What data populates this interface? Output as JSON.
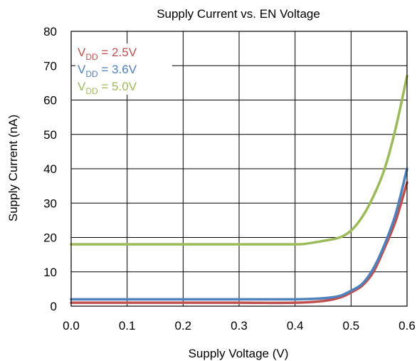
{
  "chart_data": {
    "type": "line",
    "title": "Supply Current vs. EN Voltage",
    "xlabel": "Supply Voltage (V)",
    "ylabel": "Supply Current (nA)",
    "xlim": [
      0.0,
      0.6
    ],
    "ylim": [
      0,
      80
    ],
    "xticks": [
      "0.0",
      "0.1",
      "0.2",
      "0.3",
      "0.4",
      "0.5",
      "0.6"
    ],
    "yticks": [
      "0",
      "10",
      "20",
      "30",
      "40",
      "50",
      "60",
      "70",
      "80"
    ],
    "grid": true,
    "legend": "top-left",
    "series": [
      {
        "name": "VDD = 2.5V",
        "label_main": "V",
        "label_sub": "DD",
        "label_rest": " = 2.5V",
        "color": "#c0504d",
        "x": [
          0.0,
          0.1,
          0.2,
          0.3,
          0.4,
          0.45,
          0.48,
          0.5,
          0.52,
          0.54,
          0.56,
          0.58,
          0.6
        ],
        "y": [
          1,
          1,
          1,
          1,
          1,
          1.5,
          2.5,
          4,
          6,
          10,
          17,
          25,
          36
        ]
      },
      {
        "name": "VDD = 3.6V",
        "label_main": "V",
        "label_sub": "DD",
        "label_rest": " = 3.6V",
        "color": "#4f81bd",
        "x": [
          0.0,
          0.1,
          0.2,
          0.3,
          0.4,
          0.45,
          0.48,
          0.5,
          0.52,
          0.54,
          0.56,
          0.58,
          0.6
        ],
        "y": [
          2,
          2,
          2,
          2,
          2,
          2.3,
          3,
          4.5,
          6.5,
          11,
          18,
          27,
          40
        ]
      },
      {
        "name": "VDD = 5.0V",
        "label_main": "V",
        "label_sub": "DD",
        "label_rest": " = 5.0V",
        "color": "#9bbb59",
        "x": [
          0.0,
          0.1,
          0.2,
          0.3,
          0.4,
          0.42,
          0.45,
          0.48,
          0.5,
          0.52,
          0.54,
          0.56,
          0.58,
          0.6
        ],
        "y": [
          18,
          18,
          18,
          18,
          18,
          18.2,
          19,
          20,
          22,
          26,
          32,
          40,
          52,
          67
        ]
      }
    ]
  }
}
